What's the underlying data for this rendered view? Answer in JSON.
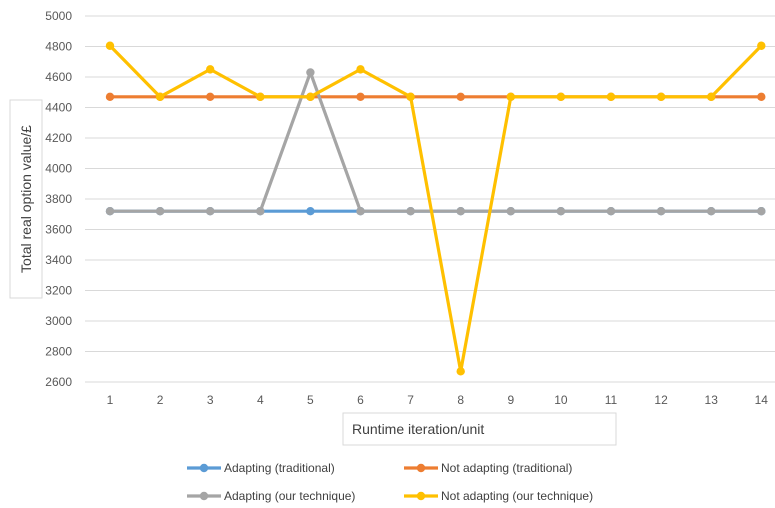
{
  "chart_data": {
    "type": "line",
    "xlabel": "Runtime iteration/unit",
    "ylabel": "Total real option value/£",
    "x": [
      1,
      2,
      3,
      4,
      5,
      6,
      7,
      8,
      9,
      10,
      11,
      12,
      13,
      14
    ],
    "ylim": [
      2600,
      5000
    ],
    "yticks": [
      2600,
      2800,
      3000,
      3200,
      3400,
      3600,
      3800,
      4000,
      4200,
      4400,
      4600,
      4800,
      5000
    ],
    "grid": true,
    "legend_position": "bottom",
    "series": [
      {
        "name": "Adapting (traditional)",
        "color": "#5B9BD5",
        "values": [
          3720,
          3720,
          3720,
          3720,
          3720,
          3720,
          3720,
          3720,
          3720,
          3720,
          3720,
          3720,
          3720,
          3720
        ]
      },
      {
        "name": "Not adapting (traditional)",
        "color": "#ED7D31",
        "values": [
          4470,
          4470,
          4470,
          4470,
          4470,
          4470,
          4470,
          4470,
          4470,
          4470,
          4470,
          4470,
          4470,
          4470
        ]
      },
      {
        "name": "Adapting (our technique)",
        "color": "#A5A5A5",
        "values": [
          3720,
          3720,
          3720,
          3720,
          4630,
          3720,
          3720,
          3720,
          3720,
          3720,
          3720,
          3720,
          3720,
          3720
        ]
      },
      {
        "name": "Not adapting (our technique)",
        "color": "#FFC000",
        "values": [
          4805,
          4470,
          4650,
          4470,
          4470,
          4650,
          4470,
          2670,
          4470,
          4470,
          4470,
          4470,
          4470,
          4805
        ]
      }
    ]
  }
}
